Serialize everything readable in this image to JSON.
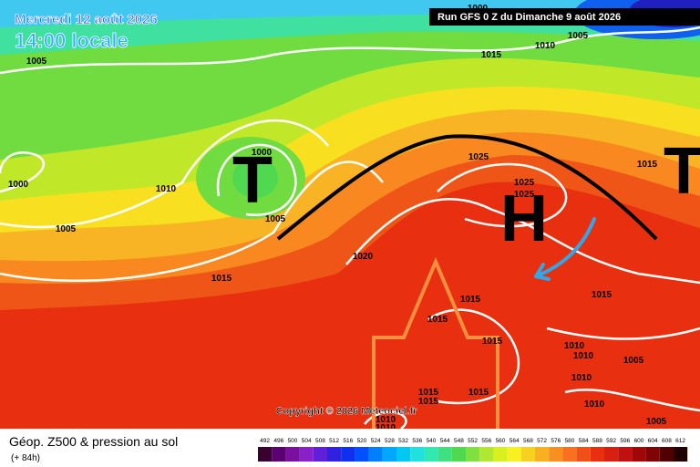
{
  "header": {
    "date": "Mercredi 12 août 2026",
    "time": "14:00 locale",
    "run": "Run GFS 0 Z du Dimanche 9 août 2026"
  },
  "map": {
    "lows": [
      "T",
      "T"
    ],
    "high": "H",
    "isobar_labels": [
      "1000",
      "1005",
      "1000",
      "1010",
      "1000",
      "1005",
      "1005",
      "1015",
      "1020",
      "1015",
      "1010",
      "1005",
      "1025",
      "1025",
      "1025",
      "1015",
      "1015",
      "1015",
      "1015",
      "1015",
      "1010",
      "1010",
      "1010",
      "1005",
      "1015",
      "1015",
      "1015",
      "1010",
      "1010",
      "1010",
      "1005"
    ],
    "copyright": "Copyright © 2026 Meteociel.fr"
  },
  "footer": {
    "title": "Géop. Z500 & pression au sol",
    "lead": "(+ 84h)",
    "scale_labels": [
      "492",
      "496",
      "500",
      "504",
      "508",
      "512",
      "516",
      "520",
      "524",
      "528",
      "532",
      "536",
      "540",
      "544",
      "548",
      "552",
      "556",
      "560",
      "564",
      "568",
      "572",
      "576",
      "580",
      "584",
      "588",
      "592",
      "596",
      "600",
      "604",
      "608",
      "612"
    ],
    "scale_colors": [
      "#3a0030",
      "#5a0070",
      "#7a10a0",
      "#8a20c8",
      "#6020d8",
      "#3020e0",
      "#1030f0",
      "#0050ff",
      "#0080ff",
      "#00a8ff",
      "#00c8f0",
      "#20e0e0",
      "#30e8b0",
      "#40e080",
      "#50d850",
      "#80e040",
      "#b0e830",
      "#d8f020",
      "#f8f020",
      "#f8d020",
      "#f8b020",
      "#f89020",
      "#f87020",
      "#f05018",
      "#e83010",
      "#d82010",
      "#c01010",
      "#a00808",
      "#800404",
      "#500000",
      "#200000"
    ]
  }
}
